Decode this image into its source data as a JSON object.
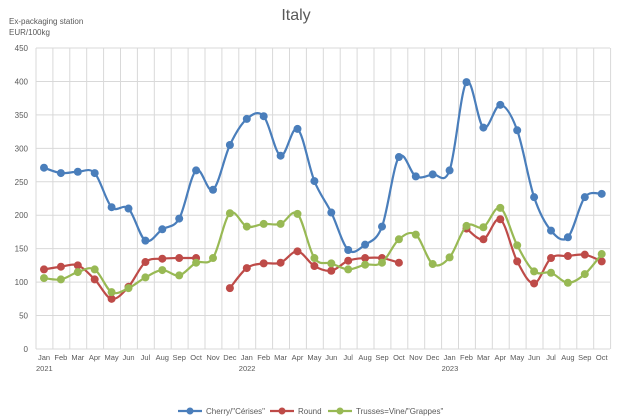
{
  "chart_data": {
    "type": "line",
    "title": "Italy",
    "ylabel_lines": [
      "Ex-packaging station",
      "EUR/100kg"
    ],
    "ylim": [
      0,
      450
    ],
    "yticks": [
      0,
      50,
      100,
      150,
      200,
      250,
      300,
      350,
      400,
      450
    ],
    "grid": true,
    "legend_position": "bottom",
    "months": [
      "Jan",
      "Feb",
      "Mar",
      "Apr",
      "May",
      "Jun",
      "Jul",
      "Aug",
      "Sep",
      "Oct",
      "Nov",
      "Dec",
      "Jan",
      "Feb",
      "Mar",
      "Apr",
      "May",
      "Jun",
      "Jul",
      "Aug",
      "Sep",
      "Oct",
      "Nov",
      "Dec",
      "Jan",
      "Feb",
      "Mar",
      "Apr",
      "May",
      "Jun",
      "Jul",
      "Aug",
      "Sep",
      "Oct"
    ],
    "years": [
      {
        "label": "2021",
        "index": 0
      },
      {
        "label": "2022",
        "index": 12
      },
      {
        "label": "2023",
        "index": 24
      }
    ],
    "series": [
      {
        "name": "Cherry/\"Cérises\"",
        "color": "#4a7ebb",
        "values": [
          271,
          263,
          265,
          263,
          212,
          210,
          162,
          179,
          195,
          267,
          238,
          305,
          344,
          348,
          289,
          329,
          251,
          204,
          148,
          156,
          183,
          287,
          258,
          261,
          267,
          399,
          331,
          365,
          327,
          227,
          177,
          167,
          227,
          232
        ]
      },
      {
        "name": "Round",
        "color": "#be4b48",
        "values": [
          119,
          123,
          125,
          104,
          75,
          93,
          130,
          135,
          136,
          136,
          null,
          91,
          121,
          128,
          129,
          146,
          124,
          117,
          132,
          136,
          136,
          129,
          null,
          null,
          null,
          180,
          164,
          194,
          131,
          98,
          136,
          139,
          141,
          131
        ]
      },
      {
        "name": "Trusses=Vine/\"Grappes\"",
        "color": "#98b954",
        "values": [
          106,
          104,
          115,
          119,
          85,
          91,
          107,
          118,
          110,
          129,
          136,
          203,
          183,
          187,
          187,
          202,
          136,
          128,
          119,
          126,
          129,
          164,
          171,
          127,
          137,
          184,
          182,
          211,
          155,
          116,
          114,
          99,
          112,
          142
        ]
      }
    ]
  }
}
